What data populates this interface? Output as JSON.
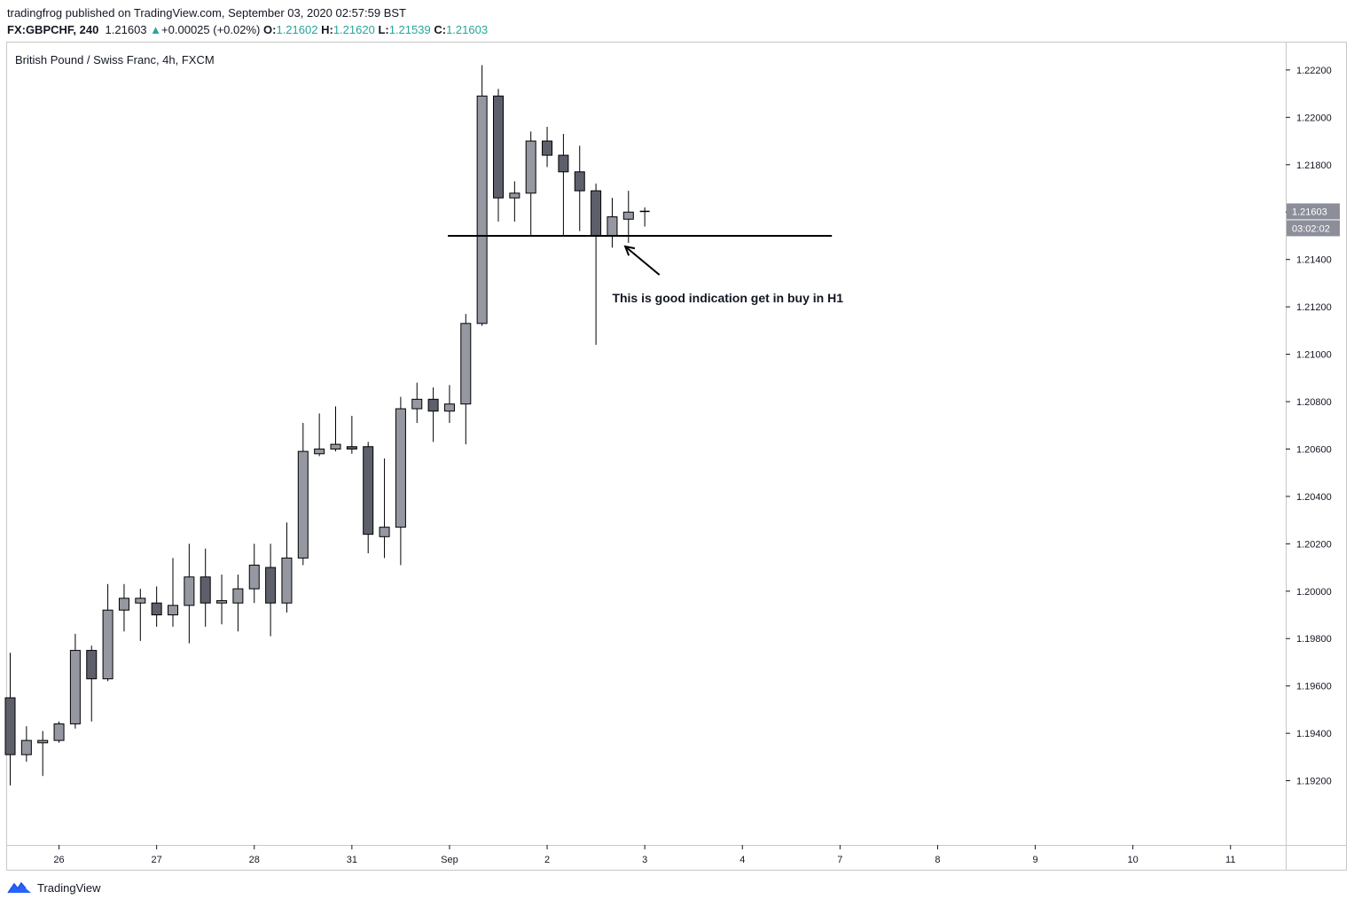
{
  "header": {
    "line1": "tradingfrog published on TradingView.com, September 03, 2020 02:57:59 BST",
    "symbol": "FX:GBPCHF, 240",
    "last": "1.21603",
    "change_arrow": "▲",
    "change": "+0.00025",
    "change_pct": "(+0.02%)",
    "o_label": "O:",
    "o_value": "1.21602",
    "h_label": "H:",
    "h_value": "1.21620",
    "l_label": "L:",
    "l_value": "1.21539",
    "c_label": "C:",
    "c_value": "1.21603"
  },
  "footer": {
    "brand": "TradingView"
  },
  "colors": {
    "bull": "#9598a1",
    "bear": "#5d606b",
    "border": "#000000",
    "value_up": "#26a69a"
  },
  "chart_data": {
    "type": "candlestick",
    "title": "British Pound / Swiss Franc, 4h, FXCM",
    "ylim": [
      1.19015,
      1.2231
    ],
    "y_ticks": [
      "1.22200",
      "1.22000",
      "1.21800",
      "1.21600",
      "1.21400",
      "1.21200",
      "1.21000",
      "1.20800",
      "1.20600",
      "1.20400",
      "1.20200",
      "1.20000",
      "1.19800",
      "1.19600",
      "1.19400",
      "1.19200"
    ],
    "y_tick_values": [
      1.222,
      1.22,
      1.218,
      1.216,
      1.214,
      1.212,
      1.21,
      1.208,
      1.206,
      1.204,
      1.202,
      1.2,
      1.198,
      1.196,
      1.194,
      1.192
    ],
    "x_ticks": [
      "26",
      "27",
      "28",
      "31",
      "Sep",
      "2",
      "3",
      "4",
      "7",
      "8",
      "9",
      "10",
      "11"
    ],
    "x_tick_index": [
      3,
      9,
      15,
      21,
      27,
      33,
      39,
      45,
      51,
      57,
      63,
      69,
      75
    ],
    "last_price_label": "1.21603",
    "countdown_label": "03:02:02",
    "last_price": 1.21603,
    "support_line": {
      "value": 1.215,
      "from_index": 26.9,
      "to_index": 50.5
    },
    "annotation": {
      "text": "This is good indication get in buy in H1",
      "arrow_tip": {
        "index": 37.8,
        "value": 1.21455
      },
      "arrow_tail": {
        "index": 39.9,
        "value": 1.21335
      },
      "text_at": {
        "index": 37.0,
        "value": 1.2122
      }
    },
    "candles": [
      {
        "i": 0,
        "o": 1.1955,
        "h": 1.1974,
        "l": 1.1918,
        "c": 1.1931
      },
      {
        "i": 1,
        "o": 1.1931,
        "h": 1.1943,
        "l": 1.1928,
        "c": 1.1937
      },
      {
        "i": 2,
        "o": 1.1936,
        "h": 1.1941,
        "l": 1.1922,
        "c": 1.1937
      },
      {
        "i": 3,
        "o": 1.1937,
        "h": 1.1945,
        "l": 1.1936,
        "c": 1.1944
      },
      {
        "i": 4,
        "o": 1.1944,
        "h": 1.1982,
        "l": 1.1942,
        "c": 1.1975
      },
      {
        "i": 5,
        "o": 1.1975,
        "h": 1.1977,
        "l": 1.1945,
        "c": 1.1963
      },
      {
        "i": 6,
        "o": 1.1963,
        "h": 1.2003,
        "l": 1.1962,
        "c": 1.1992
      },
      {
        "i": 7,
        "o": 1.1992,
        "h": 1.2003,
        "l": 1.1983,
        "c": 1.1997
      },
      {
        "i": 8,
        "o": 1.1995,
        "h": 1.2001,
        "l": 1.1979,
        "c": 1.1997
      },
      {
        "i": 9,
        "o": 1.1995,
        "h": 1.2002,
        "l": 1.1985,
        "c": 1.199
      },
      {
        "i": 10,
        "o": 1.199,
        "h": 1.2014,
        "l": 1.1985,
        "c": 1.1994
      },
      {
        "i": 11,
        "o": 1.1994,
        "h": 1.202,
        "l": 1.1978,
        "c": 1.2006
      },
      {
        "i": 12,
        "o": 1.2006,
        "h": 1.2018,
        "l": 1.1985,
        "c": 1.1995
      },
      {
        "i": 13,
        "o": 1.1995,
        "h": 1.2007,
        "l": 1.1986,
        "c": 1.1996
      },
      {
        "i": 14,
        "o": 1.1995,
        "h": 1.2007,
        "l": 1.1983,
        "c": 1.2001
      },
      {
        "i": 15,
        "o": 1.2001,
        "h": 1.202,
        "l": 1.1995,
        "c": 1.2011
      },
      {
        "i": 16,
        "o": 1.201,
        "h": 1.202,
        "l": 1.1981,
        "c": 1.1995
      },
      {
        "i": 17,
        "o": 1.1995,
        "h": 1.2029,
        "l": 1.1991,
        "c": 1.2014
      },
      {
        "i": 18,
        "o": 1.2014,
        "h": 1.2071,
        "l": 1.2011,
        "c": 1.2059
      },
      {
        "i": 19,
        "o": 1.2058,
        "h": 1.2075,
        "l": 1.2057,
        "c": 1.206
      },
      {
        "i": 20,
        "o": 1.206,
        "h": 1.2078,
        "l": 1.2059,
        "c": 1.2062
      },
      {
        "i": 21,
        "o": 1.2061,
        "h": 1.2074,
        "l": 1.2058,
        "c": 1.206
      },
      {
        "i": 22,
        "o": 1.2061,
        "h": 1.2063,
        "l": 1.2016,
        "c": 1.2024
      },
      {
        "i": 23,
        "o": 1.2023,
        "h": 1.2056,
        "l": 1.2014,
        "c": 1.2027
      },
      {
        "i": 24,
        "o": 1.2027,
        "h": 1.2082,
        "l": 1.2011,
        "c": 1.2077
      },
      {
        "i": 25,
        "o": 1.2077,
        "h": 1.2088,
        "l": 1.2071,
        "c": 1.2081
      },
      {
        "i": 26,
        "o": 1.2081,
        "h": 1.2086,
        "l": 1.2063,
        "c": 1.2076
      },
      {
        "i": 27,
        "o": 1.2076,
        "h": 1.2087,
        "l": 1.2071,
        "c": 1.2079
      },
      {
        "i": 28,
        "o": 1.2079,
        "h": 1.2117,
        "l": 1.2062,
        "c": 1.2113
      },
      {
        "i": 29,
        "o": 1.2113,
        "h": 1.2222,
        "l": 1.2112,
        "c": 1.2209
      },
      {
        "i": 30,
        "o": 1.2209,
        "h": 1.2212,
        "l": 1.2156,
        "c": 1.2166
      },
      {
        "i": 31,
        "o": 1.2166,
        "h": 1.2173,
        "l": 1.2156,
        "c": 1.2168
      },
      {
        "i": 32,
        "o": 1.2168,
        "h": 1.2194,
        "l": 1.215,
        "c": 1.219
      },
      {
        "i": 33,
        "o": 1.219,
        "h": 1.2196,
        "l": 1.2179,
        "c": 1.2184
      },
      {
        "i": 34,
        "o": 1.2184,
        "h": 1.2193,
        "l": 1.215,
        "c": 1.2177
      },
      {
        "i": 35,
        "o": 1.2177,
        "h": 1.2188,
        "l": 1.2152,
        "c": 1.2169
      },
      {
        "i": 36,
        "o": 1.2169,
        "h": 1.2172,
        "l": 1.2104,
        "c": 1.215
      },
      {
        "i": 37,
        "o": 1.215,
        "h": 1.2166,
        "l": 1.2145,
        "c": 1.2158
      },
      {
        "i": 38,
        "o": 1.2157,
        "h": 1.2169,
        "l": 1.2147,
        "c": 1.216
      },
      {
        "i": 39,
        "o": 1.21602,
        "h": 1.2162,
        "l": 1.21539,
        "c": 1.21603
      }
    ]
  }
}
